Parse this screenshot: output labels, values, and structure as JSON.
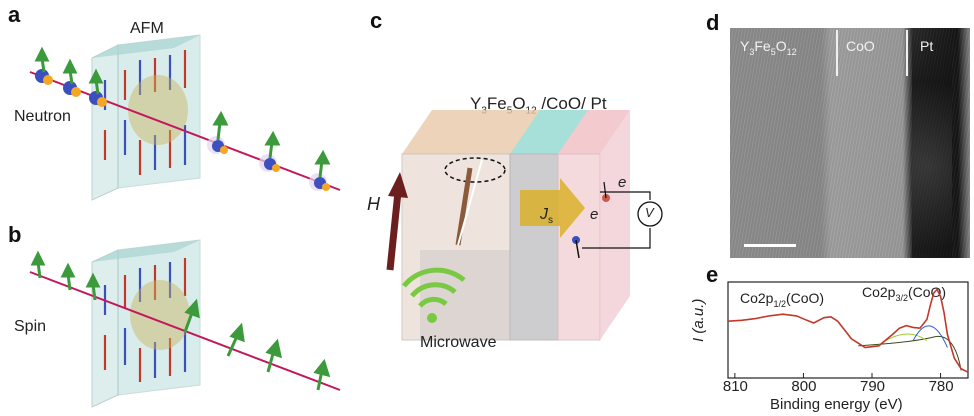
{
  "panels": {
    "a": {
      "label": "a",
      "afm_label": "AFM",
      "side_label": "Neutron"
    },
    "b": {
      "label": "b",
      "side_label": "Spin"
    },
    "c": {
      "label": "c",
      "stack_title_parts": [
        "Y",
        "3",
        "Fe",
        "5",
        "O",
        "12",
        " /CoO/ Pt"
      ],
      "field_label": "H",
      "current_label": "J",
      "current_sub": "s",
      "electron_label": "e",
      "voltmeter_label": "V",
      "source_label": "Microwave"
    },
    "d": {
      "label": "d",
      "layers": [
        {
          "parts": [
            "Y",
            "3",
            "Fe",
            "5",
            "O",
            "12"
          ]
        },
        {
          "parts": [
            "CoO"
          ]
        },
        {
          "parts": [
            "Pt"
          ]
        }
      ]
    },
    "e": {
      "label": "e",
      "peak1_parts": [
        "Co2p",
        "1/2",
        "(CoO)"
      ],
      "peak2_parts": [
        "Co2p",
        "3/2",
        "(CoO)"
      ]
    }
  },
  "chart_data": {
    "type": "line",
    "xlabel": "Binding energy (eV)",
    "ylabel": "I (a.u.)",
    "x_ticks": [
      810,
      800,
      790,
      780
    ],
    "xlim": [
      811,
      776
    ],
    "x_reversed": true,
    "grid": false,
    "series": [
      {
        "x": [
          811,
          809,
          807,
          805,
          803,
          801,
          799.5,
          798.5,
          797,
          796,
          795,
          794,
          793,
          791,
          789,
          787,
          786,
          785,
          784,
          783,
          782,
          781.5,
          781,
          780.5,
          780,
          779.5,
          779,
          778,
          777,
          776
        ],
        "y": [
          0.6,
          0.61,
          0.63,
          0.66,
          0.68,
          0.66,
          0.61,
          0.58,
          0.64,
          0.65,
          0.6,
          0.5,
          0.4,
          0.3,
          0.32,
          0.45,
          0.52,
          0.55,
          0.53,
          0.52,
          0.62,
          0.78,
          0.92,
          0.96,
          0.88,
          0.7,
          0.45,
          0.18,
          0.06,
          0.02
        ],
        "color": "#c0392b"
      }
    ],
    "colors": {
      "data": "#c0392b",
      "fit_green": "#9acd32",
      "fit_blue": "#2f5fd0",
      "background": "#3a4d1a"
    }
  }
}
